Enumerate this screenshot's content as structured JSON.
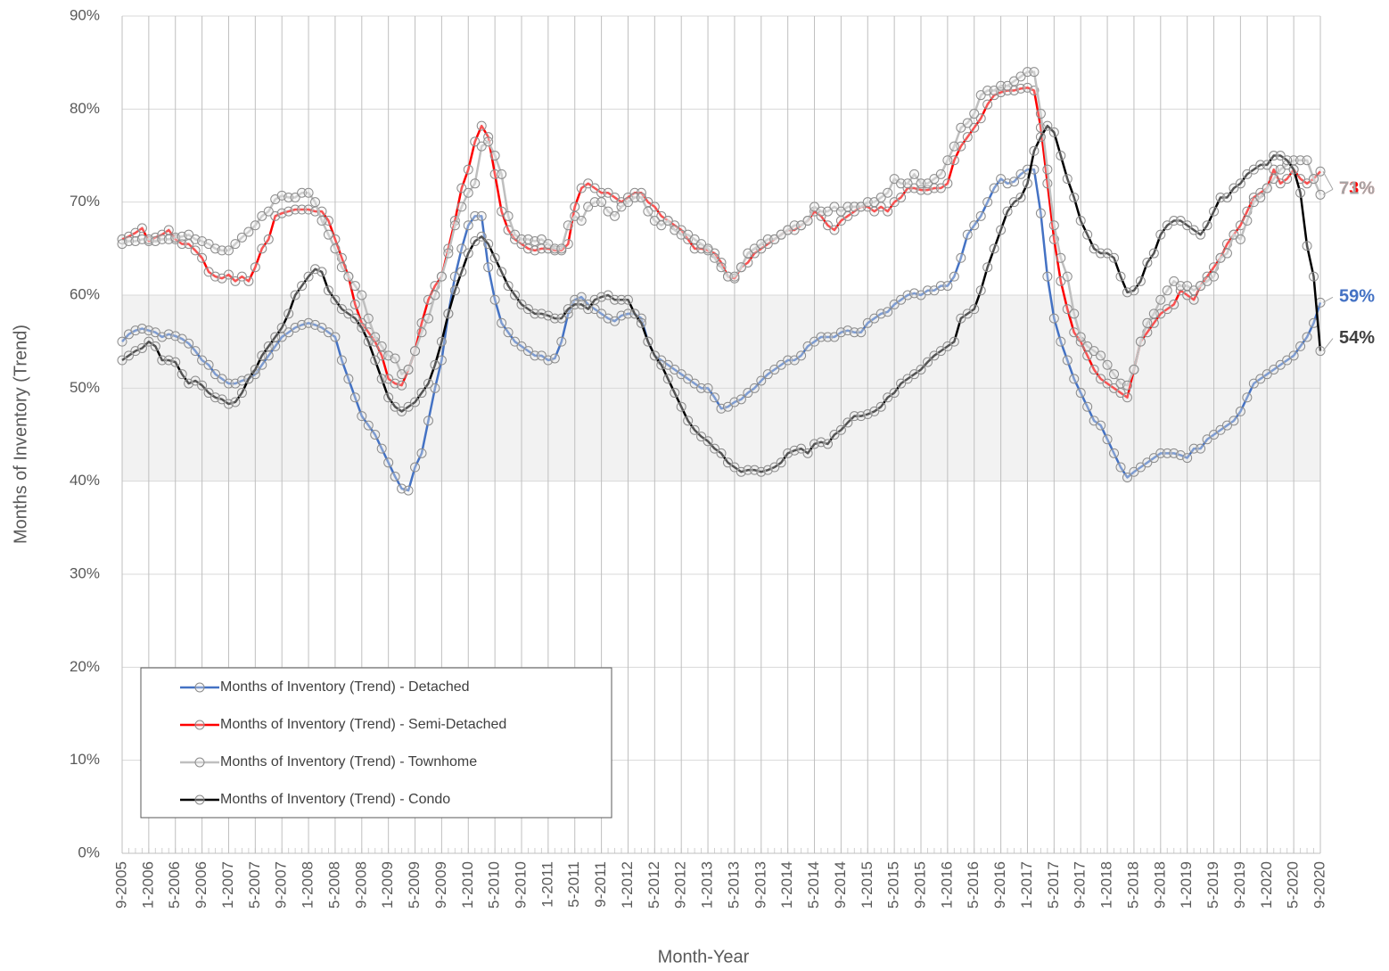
{
  "chart_data": {
    "type": "line",
    "y_label": "Months of Inventory (Trend)",
    "x_label": "Month-Year",
    "categories": [
      "9-2005",
      null,
      null,
      null,
      "1-2006",
      null,
      null,
      null,
      "5-2006",
      null,
      null,
      null,
      "9-2006",
      null,
      null,
      null,
      "1-2007",
      null,
      null,
      null,
      "5-2007",
      null,
      null,
      null,
      "9-2007",
      null,
      null,
      null,
      "1-2008",
      null,
      null,
      null,
      "5-2008",
      null,
      null,
      null,
      "9-2008",
      null,
      null,
      null,
      "1-2009",
      null,
      null,
      null,
      "5-2009",
      null,
      null,
      null,
      "9-2009",
      null,
      null,
      null,
      "1-2010",
      null,
      null,
      null,
      "5-2010",
      null,
      null,
      null,
      "9-2010",
      null,
      null,
      null,
      "1-2011",
      null,
      null,
      null,
      "5-2011",
      null,
      null,
      null,
      "9-2011",
      null,
      null,
      null,
      "1-2012",
      null,
      null,
      null,
      "5-2012",
      null,
      null,
      null,
      "9-2012",
      null,
      null,
      null,
      "1-2013",
      null,
      null,
      null,
      "5-2013",
      null,
      null,
      null,
      "9-2013",
      null,
      null,
      null,
      "1-2014",
      null,
      null,
      null,
      "5-2014",
      null,
      null,
      null,
      "9-2014",
      null,
      null,
      null,
      "1-2015",
      null,
      null,
      null,
      "5-2015",
      null,
      null,
      null,
      "9-2015",
      null,
      null,
      null,
      "1-2016",
      null,
      null,
      null,
      "5-2016",
      null,
      null,
      null,
      "9-2016",
      null,
      null,
      null,
      "1-2017",
      null,
      null,
      null,
      "5-2017",
      null,
      null,
      null,
      "9-2017",
      null,
      null,
      null,
      "1-2018",
      null,
      null,
      null,
      "5-2018",
      null,
      null,
      null,
      "9-2018",
      null,
      null,
      null,
      "1-2019",
      null,
      null,
      null,
      "5-2019",
      null,
      null,
      null,
      "9-2019",
      null,
      null,
      null,
      "1-2020",
      null,
      null,
      null,
      "5-2020",
      null,
      null,
      null,
      "9-2020"
    ],
    "series": [
      {
        "name": "Months of Inventory (Trend) - Detached",
        "color": "#4472c4",
        "label_color": "#4472c4",
        "end_label": "59%",
        "values": [
          55,
          55.8,
          56.2,
          56.4,
          56.2,
          56,
          55.5,
          55.8,
          55.6,
          55.3,
          54.8,
          54,
          53,
          52.5,
          51.5,
          51,
          50.5,
          50.5,
          50.8,
          51,
          51.5,
          52.5,
          53.5,
          54.5,
          55.5,
          56,
          56.5,
          56.8,
          57,
          56.8,
          56.5,
          56,
          55.5,
          53,
          51,
          49,
          47,
          46,
          45,
          43.5,
          42,
          40.5,
          39.2,
          39,
          41.5,
          43,
          46.5,
          50,
          53,
          58,
          62,
          65,
          67.5,
          68.5,
          68.5,
          63,
          59.5,
          57,
          56,
          55,
          54.5,
          54,
          53.5,
          53.5,
          53,
          53.2,
          55,
          58,
          59.5,
          59.8,
          59,
          58.5,
          58,
          57.5,
          57.2,
          57.8,
          58,
          58,
          57.5,
          55,
          53.5,
          53,
          52.5,
          52,
          51.5,
          51,
          50.5,
          50,
          50,
          49,
          47.8,
          48,
          48.5,
          48.8,
          49.5,
          50,
          50.8,
          51.5,
          52,
          52.5,
          53,
          53,
          53.5,
          54.5,
          55,
          55.5,
          55.5,
          55.5,
          56,
          56.2,
          56,
          56,
          57,
          57.5,
          58,
          58.2,
          59,
          59.5,
          60,
          60.2,
          60,
          60.5,
          60.5,
          61,
          61,
          62,
          64,
          66.5,
          67.5,
          68.5,
          70,
          71.5,
          72.5,
          72,
          72.2,
          73,
          73.5,
          73.5,
          68.8,
          62,
          57.5,
          55,
          53,
          51,
          49.5,
          48,
          46.5,
          46,
          44.5,
          43,
          41.5,
          40.4,
          41,
          41.5,
          42,
          42.5,
          43,
          43,
          43,
          42.8,
          42.5,
          43.5,
          43.5,
          44.5,
          45,
          45.5,
          46,
          46.5,
          47.5,
          49,
          50.5,
          51,
          51.5,
          52,
          52.5,
          53,
          53.5,
          54.5,
          55.5,
          57,
          59.2
        ]
      },
      {
        "name": "Months of Inventory (Trend) - Semi-Detached",
        "color": "#ff0000",
        "label_color": "#ff0000",
        "end_label": "73%",
        "values": [
          66,
          66.3,
          66.7,
          67.2,
          65.8,
          66.2,
          66.5,
          67,
          66,
          65.5,
          65.5,
          64.8,
          64,
          62.5,
          62,
          61.8,
          62.2,
          61.5,
          62,
          61.5,
          63,
          65,
          66,
          68.5,
          68.8,
          69,
          69.2,
          69.2,
          69.2,
          69,
          69,
          68,
          66,
          64,
          62,
          59,
          57,
          56,
          55,
          53.5,
          51,
          50.5,
          50.3,
          52,
          54,
          57,
          59.5,
          61,
          62,
          65,
          68,
          71.5,
          73.5,
          76.5,
          78.2,
          77,
          73,
          69,
          67,
          66,
          65.5,
          65,
          64.8,
          65,
          65,
          64.8,
          64.8,
          65.5,
          69.5,
          71.5,
          72,
          71.5,
          71,
          71,
          70.5,
          70,
          70.5,
          71,
          71,
          70,
          69.5,
          68.5,
          68,
          67.5,
          67,
          66,
          65,
          65,
          64.8,
          64.5,
          63.5,
          62,
          61.8,
          63,
          63.5,
          64.5,
          65,
          65.5,
          66,
          66.5,
          67,
          67,
          67.5,
          68,
          69,
          68.5,
          67.5,
          67,
          68,
          68.5,
          69,
          69.5,
          69.5,
          69,
          69.5,
          69,
          70,
          70.5,
          71.5,
          71.5,
          71.3,
          71.3,
          71.5,
          71.5,
          72,
          74.5,
          76,
          77,
          78,
          79,
          80.5,
          81.5,
          81.8,
          82,
          82,
          82.2,
          82.3,
          82,
          78,
          72,
          66,
          61.5,
          58.5,
          56,
          55,
          53.5,
          52,
          51,
          50.5,
          50,
          49.5,
          49,
          52,
          55,
          56,
          57,
          58,
          58.5,
          59,
          60.5,
          60,
          59.5,
          61,
          62,
          63,
          64,
          65.5,
          66.5,
          67.5,
          69,
          70.5,
          71,
          71.5,
          73.5,
          72,
          72.5,
          73.5,
          72.5,
          72,
          72.5,
          73.3
        ]
      },
      {
        "name": "Months of Inventory (Trend) - Townhome",
        "color": "#bfbfbf",
        "label_color": "#a6a6a6",
        "end_label": "71%",
        "values": [
          65.5,
          65.8,
          65.8,
          66,
          66,
          65.8,
          66,
          66,
          66.2,
          66.3,
          66.5,
          66,
          65.8,
          65.5,
          65,
          64.8,
          64.8,
          65.5,
          66.2,
          66.8,
          67.5,
          68.5,
          69,
          70.3,
          70.7,
          70.5,
          70.5,
          71,
          71,
          70,
          68,
          66.5,
          65,
          63,
          62,
          61,
          60,
          57.5,
          55.5,
          54.5,
          53.5,
          53.2,
          51.5,
          52,
          54,
          56,
          57.5,
          60,
          62,
          64.5,
          67.5,
          69.5,
          71,
          72,
          76,
          76.5,
          75,
          73,
          68.5,
          66.5,
          66,
          66,
          65.8,
          66,
          65.5,
          65,
          65,
          67.5,
          68.5,
          68,
          69.5,
          70,
          70,
          69,
          68.5,
          69.5,
          70,
          70.5,
          70.5,
          69,
          68,
          67.5,
          68,
          67,
          66.5,
          66.5,
          66,
          65.5,
          65,
          64,
          63,
          62,
          62,
          63,
          64.5,
          65,
          65.5,
          66,
          66,
          66.5,
          67,
          67.5,
          67.5,
          68,
          69.5,
          69,
          69,
          69.5,
          69,
          69.5,
          69.5,
          69.5,
          70,
          70,
          70.5,
          71,
          72.5,
          72,
          72,
          73,
          72,
          72,
          72.5,
          73,
          74.5,
          76,
          78,
          78.5,
          79.5,
          81.5,
          82,
          82,
          82.5,
          82.5,
          83,
          83.5,
          84,
          84,
          79.5,
          73.5,
          67.5,
          64,
          62,
          58,
          55.5,
          54.5,
          54,
          53.5,
          52.5,
          51.5,
          50.5,
          50.3,
          52,
          55,
          57,
          58,
          59.5,
          60.5,
          61.5,
          61,
          61,
          60.5,
          61,
          61.5,
          62,
          64,
          64.5,
          66.5,
          66,
          68,
          70,
          70.5,
          71.5,
          72.5,
          73.5,
          74,
          74.5,
          74.5,
          74.5,
          72.5,
          70.8
        ]
      },
      {
        "name": "Months of Inventory (Trend) - Condo",
        "color": "#000000",
        "label_color": "#404040",
        "end_label": "54%",
        "values": [
          53,
          53.5,
          54,
          54.3,
          55,
          54.5,
          53,
          53,
          52.8,
          51.5,
          50.5,
          50.8,
          50.3,
          49.5,
          49,
          48.8,
          48.3,
          48.5,
          49.5,
          51,
          52,
          53.5,
          54.5,
          55.5,
          56.5,
          58,
          60,
          61,
          62,
          62.8,
          62.5,
          60.5,
          59.5,
          58.5,
          58,
          57.5,
          56.5,
          55,
          53,
          51,
          49,
          48,
          47.5,
          48,
          48.5,
          49.5,
          50.5,
          52.5,
          55,
          58,
          60.5,
          62.5,
          64.5,
          65.8,
          66.3,
          65.5,
          64,
          62.5,
          61,
          60,
          59,
          58.5,
          58,
          58,
          57.8,
          57.5,
          57.5,
          58.5,
          59,
          59,
          58.5,
          59.5,
          59.8,
          60,
          59.5,
          59.5,
          59.5,
          58,
          57,
          55,
          53.5,
          52.5,
          51,
          49.5,
          48,
          46.5,
          45.5,
          44.8,
          44.3,
          43.5,
          43,
          42,
          41.5,
          41,
          41.2,
          41.2,
          41,
          41.2,
          41.5,
          42,
          43,
          43.3,
          43.5,
          43,
          44,
          44.2,
          44,
          45,
          45.5,
          46.3,
          47,
          47,
          47.2,
          47.5,
          48,
          49,
          49.5,
          50.5,
          51,
          51.5,
          52,
          52.8,
          53.5,
          54,
          54.5,
          55,
          57.5,
          58,
          58.5,
          60.5,
          63,
          65,
          67,
          69,
          70,
          70.5,
          72,
          75.5,
          77,
          78.2,
          77.5,
          75,
          72.5,
          70.5,
          68,
          66.5,
          65,
          64.5,
          64.5,
          64,
          62,
          60.3,
          60.5,
          61.5,
          63.5,
          64.5,
          66.5,
          67.5,
          68,
          68,
          67.5,
          67,
          66.5,
          67.5,
          69,
          70.5,
          70.5,
          71.5,
          72,
          73,
          73.5,
          74,
          74,
          75,
          75,
          74.5,
          73.5,
          71,
          65.3,
          62,
          54
        ]
      }
    ],
    "ylim": [
      0,
      90
    ],
    "yticks": [
      {
        "value": 0,
        "label": "0%"
      },
      {
        "value": 10,
        "label": "10%"
      },
      {
        "value": 20,
        "label": "20%"
      },
      {
        "value": 30,
        "label": "30%"
      },
      {
        "value": 40,
        "label": "40%"
      },
      {
        "value": 50,
        "label": "50%"
      },
      {
        "value": 60,
        "label": "60%"
      },
      {
        "value": 70,
        "label": "70%"
      },
      {
        "value": 80,
        "label": "80%"
      },
      {
        "value": 90,
        "label": "90%"
      }
    ],
    "shaded_band": {
      "from": 40,
      "to": 60,
      "color": "#f2f2f2"
    },
    "grid": true,
    "legend": "lower left"
  }
}
